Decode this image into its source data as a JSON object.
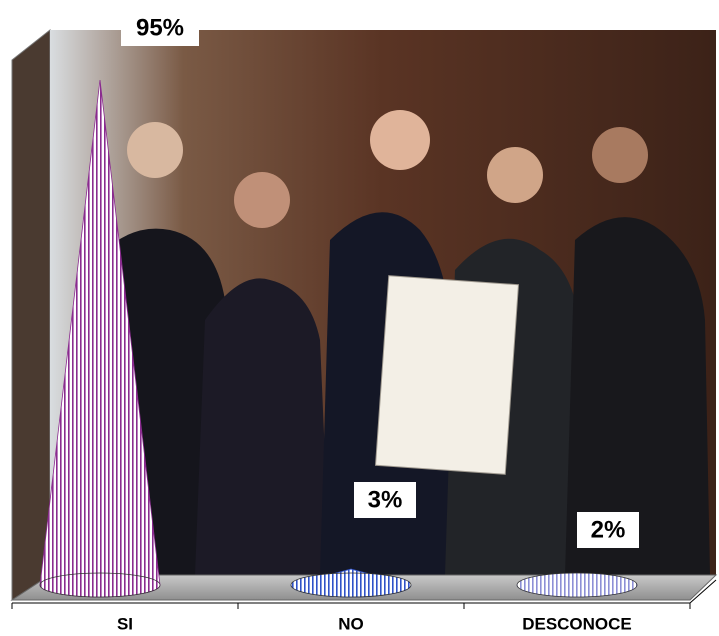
{
  "chart_data": {
    "type": "bar",
    "categories": [
      "SI",
      "NO",
      "DESCONOCE"
    ],
    "values": [
      95,
      3,
      2
    ],
    "value_labels": [
      "95%",
      "3%",
      "2%"
    ],
    "colors": [
      "#8a2b8f",
      "#2f52c8",
      "#8d8fd6"
    ]
  }
}
